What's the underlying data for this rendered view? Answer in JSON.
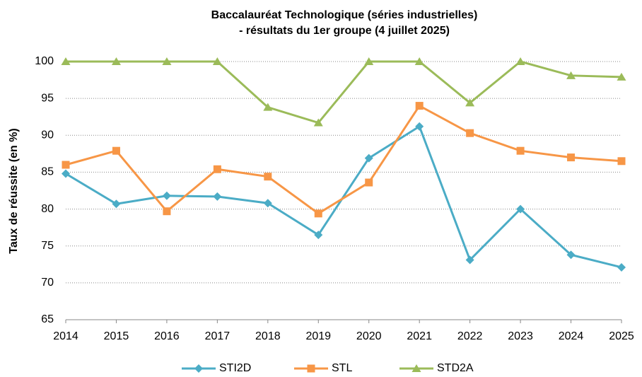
{
  "chart_data": {
    "type": "line",
    "title": "Baccalauréat Technologique  (séries industrielles)",
    "subtitle": "- résultats du 1er groupe (4 juillet 2025)",
    "y_label": "Taux de réussite (en %)",
    "x": [
      2014,
      2015,
      2016,
      2017,
      2018,
      2019,
      2020,
      2021,
      2022,
      2023,
      2024,
      2025
    ],
    "xlim": [
      2014,
      2025
    ],
    "xticks": [
      2014,
      2015,
      2016,
      2017,
      2018,
      2019,
      2020,
      2021,
      2022,
      2023,
      2024,
      2025
    ],
    "ylim": [
      65,
      100
    ],
    "yticks": [
      65,
      70,
      75,
      80,
      85,
      90,
      95,
      100
    ],
    "grid": true,
    "legend": "bottom",
    "series": [
      {
        "name": "STI2D",
        "color": "#4bacc6",
        "marker": "diamond",
        "values": [
          84.8,
          80.7,
          81.8,
          81.7,
          80.8,
          76.5,
          86.9,
          91.2,
          73.1,
          80.0,
          73.8,
          72.1
        ]
      },
      {
        "name": "STL",
        "color": "#f79646",
        "marker": "square",
        "values": [
          86.0,
          87.9,
          79.7,
          85.4,
          84.4,
          79.4,
          83.6,
          94.0,
          90.3,
          87.9,
          87.0,
          86.5
        ]
      },
      {
        "name": "STD2A",
        "color": "#9bbb59",
        "marker": "triangle",
        "values": [
          100,
          100,
          100,
          100,
          93.8,
          91.7,
          100,
          100,
          94.4,
          100,
          98.1,
          97.9
        ]
      }
    ]
  }
}
